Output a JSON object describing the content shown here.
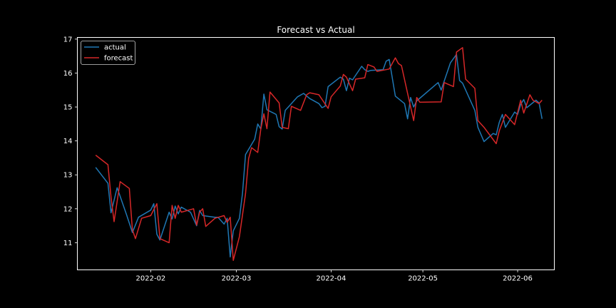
{
  "chart_data": {
    "type": "line",
    "title": "Forecast vs Actual",
    "xlabel": "",
    "ylabel": "",
    "xlim": [
      "2022-01-08",
      "2022-06-13"
    ],
    "ylim": [
      10.2,
      17.05
    ],
    "x_ticks": [
      "2022-02",
      "2022-03",
      "2022-04",
      "2022-05",
      "2022-06"
    ],
    "y_ticks": [
      11,
      12,
      13,
      14,
      15,
      16,
      17
    ],
    "grid": false,
    "legend": "top-left",
    "background": "#000000",
    "series": [
      {
        "name": "actual",
        "color": "#1f77b4",
        "points": [
          [
            "2022-01-14",
            13.22
          ],
          [
            "2022-01-18",
            12.75
          ],
          [
            "2022-01-19",
            11.88
          ],
          [
            "2022-01-21",
            12.62
          ],
          [
            "2022-01-24",
            11.85
          ],
          [
            "2022-01-26",
            11.3
          ],
          [
            "2022-01-28",
            11.75
          ],
          [
            "2022-02-01",
            11.96
          ],
          [
            "2022-02-02",
            12.15
          ],
          [
            "2022-02-03",
            11.25
          ],
          [
            "2022-02-04",
            11.08
          ],
          [
            "2022-02-07",
            11.9
          ],
          [
            "2022-02-08",
            11.7
          ],
          [
            "2022-02-09",
            12.08
          ],
          [
            "2022-02-10",
            11.85
          ],
          [
            "2022-02-11",
            12.05
          ],
          [
            "2022-02-14",
            11.9
          ],
          [
            "2022-02-16",
            11.5
          ],
          [
            "2022-02-17",
            11.95
          ],
          [
            "2022-02-18",
            11.8
          ],
          [
            "2022-02-22",
            11.75
          ],
          [
            "2022-02-23",
            11.75
          ],
          [
            "2022-02-25",
            11.55
          ],
          [
            "2022-02-26",
            11.72
          ],
          [
            "2022-02-27",
            10.58
          ],
          [
            "2022-02-28",
            11.35
          ],
          [
            "2022-03-02",
            11.72
          ],
          [
            "2022-03-03",
            12.45
          ],
          [
            "2022-03-04",
            13.6
          ],
          [
            "2022-03-07",
            14.05
          ],
          [
            "2022-03-08",
            14.5
          ],
          [
            "2022-03-09",
            14.35
          ],
          [
            "2022-03-10",
            15.38
          ],
          [
            "2022-03-11",
            14.92
          ],
          [
            "2022-03-14",
            14.78
          ],
          [
            "2022-03-15",
            14.42
          ],
          [
            "2022-03-16",
            14.35
          ],
          [
            "2022-03-17",
            14.9
          ],
          [
            "2022-03-18",
            15.0
          ],
          [
            "2022-03-21",
            15.3
          ],
          [
            "2022-03-23",
            15.4
          ],
          [
            "2022-03-25",
            15.25
          ],
          [
            "2022-03-28",
            15.1
          ],
          [
            "2022-03-29",
            14.98
          ],
          [
            "2022-03-30",
            15.02
          ],
          [
            "2022-03-31",
            15.6
          ],
          [
            "2022-04-04",
            15.88
          ],
          [
            "2022-04-05",
            15.82
          ],
          [
            "2022-04-06",
            15.48
          ],
          [
            "2022-04-07",
            15.85
          ],
          [
            "2022-04-08",
            15.8
          ],
          [
            "2022-04-11",
            16.2
          ],
          [
            "2022-04-12",
            16.1
          ],
          [
            "2022-04-13",
            16.05
          ],
          [
            "2022-04-14",
            16.08
          ],
          [
            "2022-04-18",
            16.1
          ],
          [
            "2022-04-19",
            16.35
          ],
          [
            "2022-04-20",
            16.4
          ],
          [
            "2022-04-22",
            15.32
          ],
          [
            "2022-04-25",
            15.1
          ],
          [
            "2022-04-26",
            14.65
          ],
          [
            "2022-04-27",
            15.28
          ],
          [
            "2022-04-28",
            15.0
          ],
          [
            "2022-04-29",
            15.18
          ],
          [
            "2022-05-06",
            15.72
          ],
          [
            "2022-05-07",
            15.5
          ],
          [
            "2022-05-10",
            16.3
          ],
          [
            "2022-05-12",
            16.55
          ],
          [
            "2022-05-13",
            15.78
          ],
          [
            "2022-05-14",
            15.7
          ],
          [
            "2022-05-18",
            14.9
          ],
          [
            "2022-05-19",
            14.4
          ],
          [
            "2022-05-21",
            13.98
          ],
          [
            "2022-05-24",
            14.22
          ],
          [
            "2022-05-25",
            14.18
          ],
          [
            "2022-05-26",
            14.55
          ],
          [
            "2022-05-27",
            14.78
          ],
          [
            "2022-05-28",
            14.4
          ],
          [
            "2022-05-31",
            14.85
          ],
          [
            "2022-06-01",
            14.78
          ],
          [
            "2022-06-02",
            15.08
          ],
          [
            "2022-06-03",
            15.22
          ],
          [
            "2022-06-04",
            14.98
          ],
          [
            "2022-06-07",
            15.2
          ],
          [
            "2022-06-08",
            15.12
          ],
          [
            "2022-06-09",
            14.65
          ]
        ]
      },
      {
        "name": "forecast",
        "color": "#d62728",
        "points": [
          [
            "2022-01-14",
            13.58
          ],
          [
            "2022-01-18",
            13.3
          ],
          [
            "2022-01-19",
            12.35
          ],
          [
            "2022-01-20",
            11.62
          ],
          [
            "2022-01-22",
            12.8
          ],
          [
            "2022-01-25",
            12.6
          ],
          [
            "2022-01-26",
            11.38
          ],
          [
            "2022-01-27",
            11.12
          ],
          [
            "2022-01-29",
            11.72
          ],
          [
            "2022-02-01",
            11.8
          ],
          [
            "2022-02-03",
            12.15
          ],
          [
            "2022-02-04",
            11.12
          ],
          [
            "2022-02-07",
            11.0
          ],
          [
            "2022-02-08",
            12.1
          ],
          [
            "2022-02-09",
            11.72
          ],
          [
            "2022-02-10",
            12.1
          ],
          [
            "2022-02-11",
            11.9
          ],
          [
            "2022-02-15",
            12.0
          ],
          [
            "2022-02-16",
            11.52
          ],
          [
            "2022-02-17",
            11.9
          ],
          [
            "2022-02-18",
            12.0
          ],
          [
            "2022-02-19",
            11.48
          ],
          [
            "2022-02-22",
            11.72
          ],
          [
            "2022-02-25",
            11.8
          ],
          [
            "2022-02-26",
            11.6
          ],
          [
            "2022-02-27",
            11.75
          ],
          [
            "2022-02-28",
            10.48
          ],
          [
            "2022-03-02",
            11.18
          ],
          [
            "2022-03-04",
            12.45
          ],
          [
            "2022-03-05",
            13.48
          ],
          [
            "2022-03-06",
            13.8
          ],
          [
            "2022-03-08",
            13.66
          ],
          [
            "2022-03-09",
            14.35
          ],
          [
            "2022-03-10",
            14.8
          ],
          [
            "2022-03-11",
            14.36
          ],
          [
            "2022-03-12",
            15.44
          ],
          [
            "2022-03-15",
            15.12
          ],
          [
            "2022-03-16",
            14.4
          ],
          [
            "2022-03-18",
            14.36
          ],
          [
            "2022-03-19",
            15.02
          ],
          [
            "2022-03-22",
            14.9
          ],
          [
            "2022-03-24",
            15.36
          ],
          [
            "2022-03-25",
            15.42
          ],
          [
            "2022-03-28",
            15.36
          ],
          [
            "2022-03-31",
            14.96
          ],
          [
            "2022-04-01",
            15.3
          ],
          [
            "2022-04-04",
            15.62
          ],
          [
            "2022-04-05",
            15.96
          ],
          [
            "2022-04-06",
            15.88
          ],
          [
            "2022-04-08",
            15.48
          ],
          [
            "2022-04-09",
            15.82
          ],
          [
            "2022-04-12",
            15.86
          ],
          [
            "2022-04-13",
            16.25
          ],
          [
            "2022-04-15",
            16.18
          ],
          [
            "2022-04-16",
            16.05
          ],
          [
            "2022-04-20",
            16.12
          ],
          [
            "2022-04-22",
            16.45
          ],
          [
            "2022-04-23",
            16.28
          ],
          [
            "2022-04-24",
            16.22
          ],
          [
            "2022-04-26",
            15.4
          ],
          [
            "2022-04-28",
            14.6
          ],
          [
            "2022-04-29",
            15.28
          ],
          [
            "2022-04-30",
            15.14
          ],
          [
            "2022-05-07",
            15.15
          ],
          [
            "2022-05-08",
            15.72
          ],
          [
            "2022-05-11",
            15.6
          ],
          [
            "2022-05-12",
            16.62
          ],
          [
            "2022-05-14",
            16.75
          ],
          [
            "2022-05-15",
            15.82
          ],
          [
            "2022-05-18",
            15.55
          ],
          [
            "2022-05-19",
            14.6
          ],
          [
            "2022-05-21",
            14.4
          ],
          [
            "2022-05-25",
            13.92
          ],
          [
            "2022-05-26",
            14.3
          ],
          [
            "2022-05-28",
            14.78
          ],
          [
            "2022-05-31",
            14.48
          ],
          [
            "2022-06-02",
            15.2
          ],
          [
            "2022-06-03",
            14.82
          ],
          [
            "2022-06-05",
            15.36
          ],
          [
            "2022-06-06",
            15.2
          ],
          [
            "2022-06-08",
            15.1
          ],
          [
            "2022-06-09",
            15.2
          ]
        ]
      }
    ]
  }
}
